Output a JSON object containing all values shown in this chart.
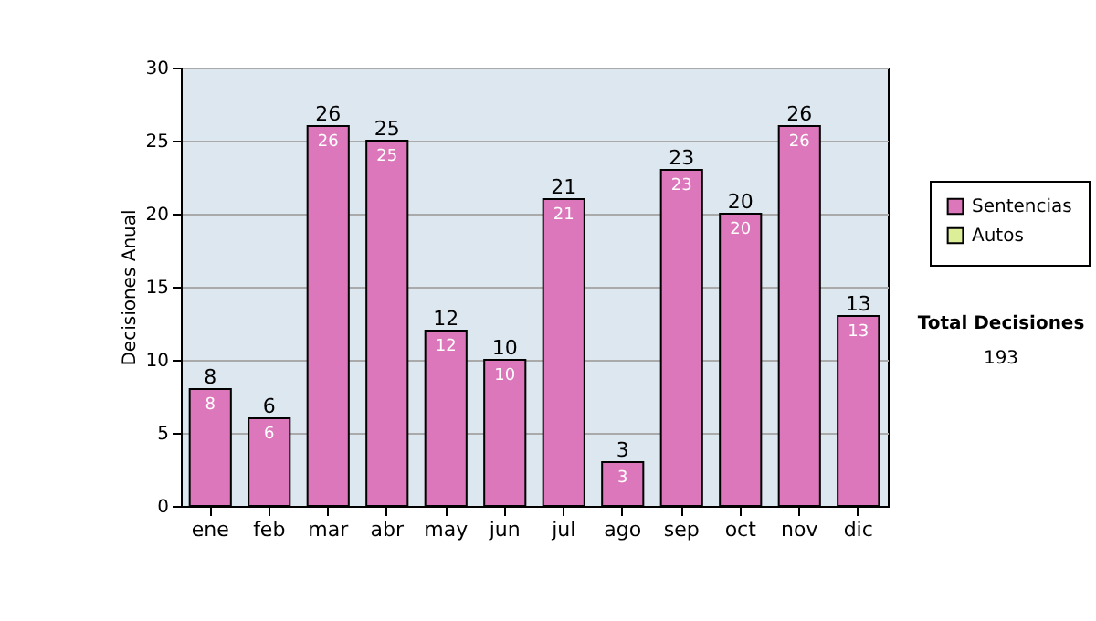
{
  "chart_data": {
    "type": "bar",
    "ylabel": "Decisiones Anual",
    "categories": [
      "ene",
      "feb",
      "mar",
      "abr",
      "may",
      "jun",
      "jul",
      "ago",
      "sep",
      "oct",
      "nov",
      "dic"
    ],
    "series": [
      {
        "name": "Sentencias",
        "color": "#dd77bb",
        "values": [
          8,
          6,
          26,
          25,
          12,
          10,
          21,
          3,
          23,
          20,
          26,
          13
        ],
        "value_labels": [
          "8",
          "6",
          "26",
          "25",
          "12",
          "10",
          "21",
          "3",
          "23",
          "20",
          "26",
          "13"
        ]
      },
      {
        "name": "Autos",
        "color": "#ddee99",
        "values": [
          null,
          null,
          null,
          null,
          null,
          null,
          null,
          null,
          null,
          null,
          null,
          null
        ]
      }
    ],
    "stacked": true,
    "totals": [
      "8",
      "6",
      "26",
      "25",
      "12",
      "10",
      "21",
      "3",
      "23",
      "20",
      "26",
      "13"
    ],
    "ylim": [
      0,
      30
    ],
    "yticks": [
      0,
      5,
      10,
      15,
      20,
      25,
      30
    ],
    "grid": "y",
    "legend": "right",
    "annotations": [
      "Total Decisiones",
      "193"
    ]
  }
}
